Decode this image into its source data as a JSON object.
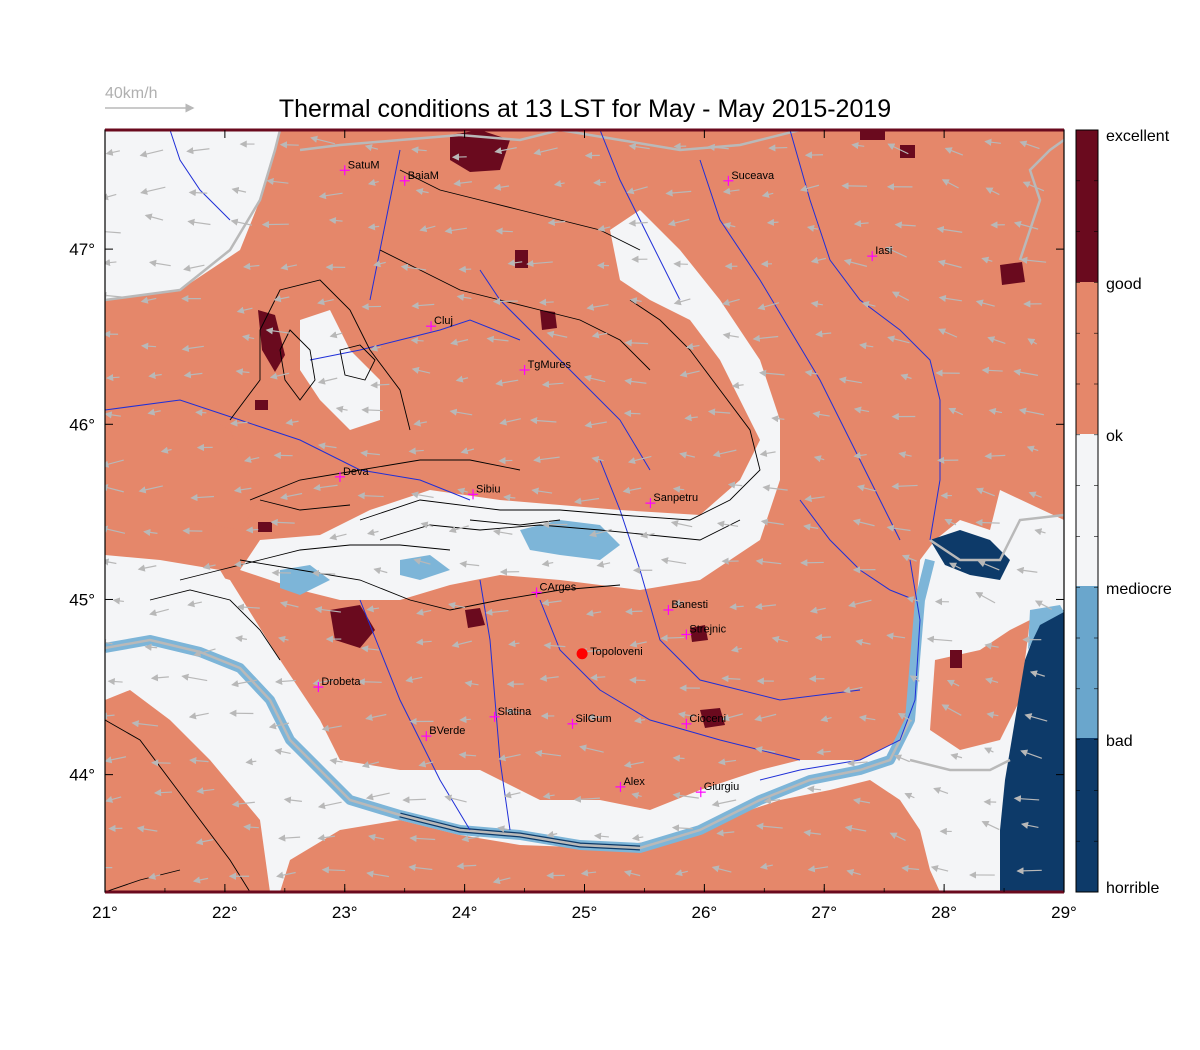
{
  "title": "Thermal conditions at 13 LST for May - May  2015-2019",
  "wind_scale_label": "40km/h",
  "colors": {
    "ok_bg": "#f4f5f7",
    "good": "#e5876a",
    "excellent": "#6a0a1e",
    "mediocre": "#6aa6cc",
    "bad": "#7db5d8",
    "horrible": "#0d3a69",
    "river": "#1f2fd8",
    "border": "#b9b9b9",
    "arrow": "#b8b8b8",
    "city_marker": "#ff00ff",
    "highlight_city": "#ff0000"
  },
  "axes": {
    "lon_range": [
      21,
      29
    ],
    "lat_range": [
      43.33,
      47.68
    ],
    "x_ticks": [
      "21°",
      "22°",
      "23°",
      "24°",
      "25°",
      "26°",
      "27°",
      "28°",
      "29°"
    ],
    "y_ticks": [
      {
        "lat": 47,
        "label": "47°"
      },
      {
        "lat": 46,
        "label": "46°"
      },
      {
        "lat": 45,
        "label": "45°"
      },
      {
        "lat": 44,
        "label": "44°"
      }
    ]
  },
  "legend": {
    "labels": [
      "excellent",
      "good",
      "ok",
      "mediocre",
      "bad",
      "horrible"
    ]
  },
  "cities": [
    {
      "name": "SatuM",
      "lon": 23.0,
      "lat": 47.45
    },
    {
      "name": "BaiaM",
      "lon": 23.5,
      "lat": 47.39
    },
    {
      "name": "Suceava",
      "lon": 26.2,
      "lat": 47.39
    },
    {
      "name": "Iasi",
      "lon": 27.4,
      "lat": 46.96
    },
    {
      "name": "Cluj",
      "lon": 23.72,
      "lat": 46.56
    },
    {
      "name": "TgMures",
      "lon": 24.5,
      "lat": 46.31
    },
    {
      "name": "Deva",
      "lon": 22.96,
      "lat": 45.7
    },
    {
      "name": "Sibiu",
      "lon": 24.07,
      "lat": 45.6
    },
    {
      "name": "Sanpetru",
      "lon": 25.55,
      "lat": 45.55
    },
    {
      "name": "CArges",
      "lon": 24.6,
      "lat": 45.04
    },
    {
      "name": "Banesti",
      "lon": 25.7,
      "lat": 44.94
    },
    {
      "name": "Strejnic",
      "lon": 25.85,
      "lat": 44.8
    },
    {
      "name": "Drobeta",
      "lon": 22.78,
      "lat": 44.5
    },
    {
      "name": "Slatina",
      "lon": 24.25,
      "lat": 44.33
    },
    {
      "name": "SilGum",
      "lon": 24.9,
      "lat": 44.29
    },
    {
      "name": "Cioceni",
      "lon": 25.85,
      "lat": 44.29
    },
    {
      "name": "BVerde",
      "lon": 23.68,
      "lat": 44.22
    },
    {
      "name": "Alex",
      "lon": 25.3,
      "lat": 43.93
    },
    {
      "name": "Giurgiu",
      "lon": 25.97,
      "lat": 43.9
    }
  ],
  "highlight_city": {
    "name": "Topoloveni",
    "lon": 24.98,
    "lat": 44.69
  }
}
